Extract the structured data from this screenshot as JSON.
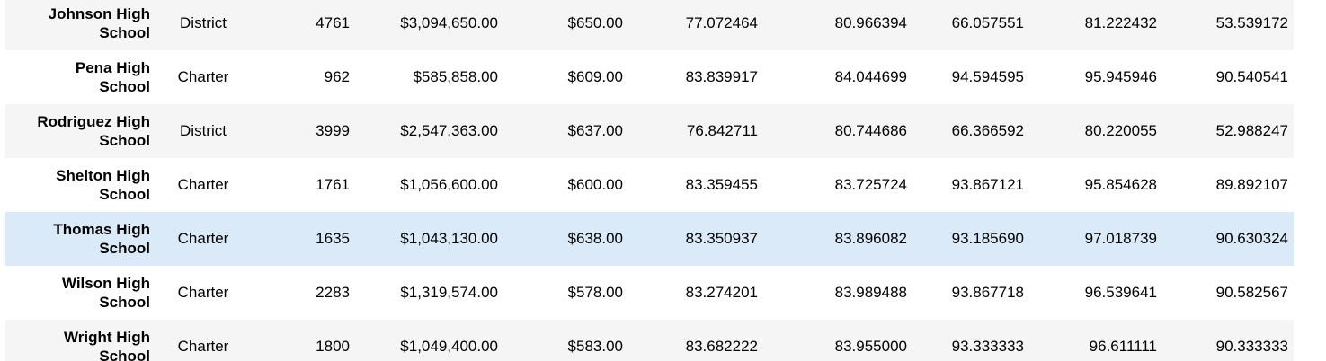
{
  "table": {
    "rows": [
      {
        "name_line1": "Johnson High",
        "name_line2": "School",
        "type": "District",
        "students": "4761",
        "budget": "$3,094,650.00",
        "per_student": "$650.00",
        "avg_math": "77.072464",
        "avg_reading": "80.966394",
        "pct_math": "66.057551",
        "pct_reading": "81.222432",
        "pct_overall": "53.539172"
      },
      {
        "name_line1": "Pena High",
        "name_line2": "School",
        "type": "Charter",
        "students": "962",
        "budget": "$585,858.00",
        "per_student": "$609.00",
        "avg_math": "83.839917",
        "avg_reading": "84.044699",
        "pct_math": "94.594595",
        "pct_reading": "95.945946",
        "pct_overall": "90.540541"
      },
      {
        "name_line1": "Rodriguez High",
        "name_line2": "School",
        "type": "District",
        "students": "3999",
        "budget": "$2,547,363.00",
        "per_student": "$637.00",
        "avg_math": "76.842711",
        "avg_reading": "80.744686",
        "pct_math": "66.366592",
        "pct_reading": "80.220055",
        "pct_overall": "52.988247"
      },
      {
        "name_line1": "Shelton High",
        "name_line2": "School",
        "type": "Charter",
        "students": "1761",
        "budget": "$1,056,600.00",
        "per_student": "$600.00",
        "avg_math": "83.359455",
        "avg_reading": "83.725724",
        "pct_math": "93.867121",
        "pct_reading": "95.854628",
        "pct_overall": "89.892107"
      },
      {
        "name_line1": "Thomas High",
        "name_line2": "School",
        "type": "Charter",
        "students": "1635",
        "budget": "$1,043,130.00",
        "per_student": "$638.00",
        "avg_math": "83.350937",
        "avg_reading": "83.896082",
        "pct_math": "93.185690",
        "pct_reading": "97.018739",
        "pct_overall": "90.630324"
      },
      {
        "name_line1": "Wilson High",
        "name_line2": "School",
        "type": "Charter",
        "students": "2283",
        "budget": "$1,319,574.00",
        "per_student": "$578.00",
        "avg_math": "83.274201",
        "avg_reading": "83.989488",
        "pct_math": "93.867718",
        "pct_reading": "96.539641",
        "pct_overall": "90.582567"
      },
      {
        "name_line1": "Wright High",
        "name_line2": "School",
        "type": "Charter",
        "students": "1800",
        "budget": "$1,049,400.00",
        "per_student": "$583.00",
        "avg_math": "83.682222",
        "avg_reading": "83.955000",
        "pct_math": "93.333333",
        "pct_reading": "96.611111",
        "pct_overall": "90.333333"
      }
    ]
  },
  "colors": {
    "row_even": "#f5f5f5",
    "row_odd": "#ffffff",
    "row_hover": "#daeaf8"
  }
}
